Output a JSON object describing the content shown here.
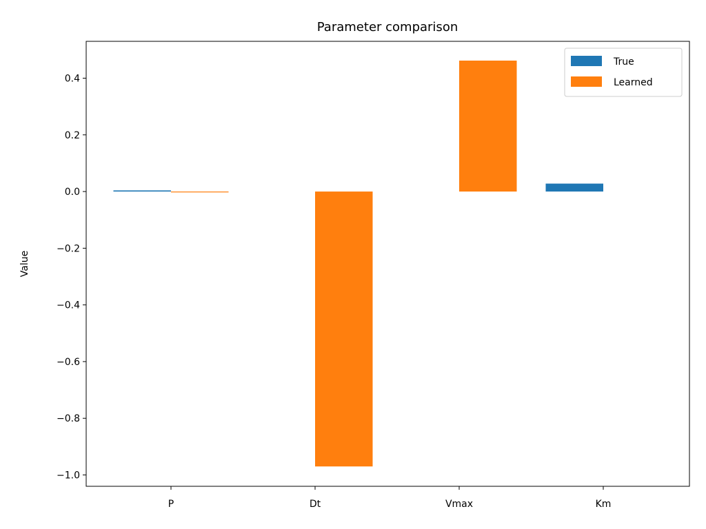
{
  "chart_data": {
    "type": "bar",
    "title": "Parameter comparison",
    "xlabel": "",
    "ylabel": "Value",
    "categories": [
      "P",
      "Dt",
      "Vmax",
      "Km"
    ],
    "series": [
      {
        "name": "True",
        "color": "#1f77b4",
        "values": [
          0.004,
          0.0,
          0.0,
          0.028
        ]
      },
      {
        "name": "Learned",
        "color": "#ff7f0e",
        "values": [
          -0.003,
          -0.97,
          0.462,
          0.0
        ]
      }
    ],
    "ylim": [
      -1.04,
      0.53
    ],
    "yticks": [
      0.4,
      0.2,
      0.0,
      -0.2,
      -0.4,
      -0.6,
      -0.8,
      -1.0
    ],
    "ytick_labels": [
      "0.4",
      "0.2",
      "0.0",
      "−0.2",
      "−0.4",
      "−0.6",
      "−0.8",
      "−1.0"
    ],
    "grid": false,
    "legend_position": "top-right"
  }
}
